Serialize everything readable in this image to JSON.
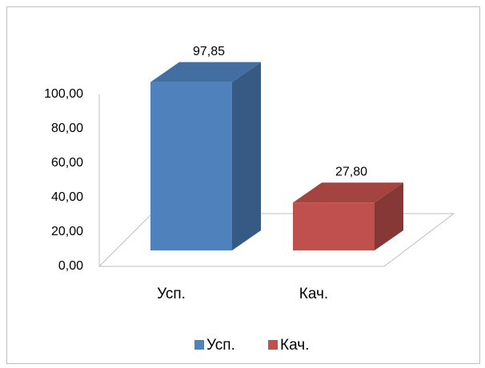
{
  "chart_data": {
    "type": "bar3d",
    "categories": [
      "Усп.",
      "Кач."
    ],
    "values": [
      97.85,
      27.8
    ],
    "value_labels": [
      "97,85",
      "27,80"
    ],
    "colors": [
      "#4f81bd",
      "#c0504d"
    ],
    "ylim": [
      0,
      100
    ],
    "yticks": [
      {
        "value": 0,
        "label": "0,00"
      },
      {
        "value": 20,
        "label": "20,00"
      },
      {
        "value": 40,
        "label": "40,00"
      },
      {
        "value": 60,
        "label": "60,00"
      },
      {
        "value": 80,
        "label": "80,00"
      },
      {
        "value": 100,
        "label": "100,00"
      }
    ],
    "legend": "bottom"
  }
}
